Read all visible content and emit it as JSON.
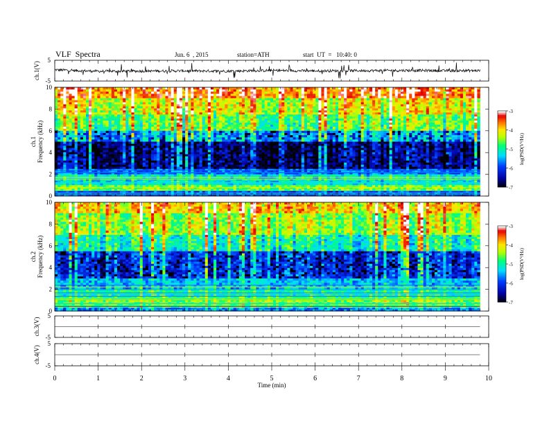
{
  "header": {
    "title": "VLF  Spectra",
    "date": "Jun. 6  , 2015",
    "station": "station=ATH",
    "start": "start  UT  =   10:40: 0"
  },
  "colorbar": {
    "label": "log(PSD(V²/Hz)",
    "ticks": [
      "-3",
      "-4",
      "-5",
      "-6",
      "-7"
    ]
  },
  "chart_data": [
    {
      "type": "line",
      "panel": "ch1-waveform",
      "ylabel": "ch.1(V)",
      "ylim": [
        -5,
        5
      ],
      "yticks": [
        "5",
        "-5"
      ],
      "x": [
        0,
        1,
        2,
        3,
        4,
        5,
        6,
        7,
        8,
        9,
        9.8
      ],
      "values": [
        0.4,
        -0.3,
        -0.2,
        -0.1,
        -0.2,
        0.1,
        -0.1,
        0.0,
        0.1,
        0.0,
        0.0
      ]
    },
    {
      "type": "heatmap",
      "panel": "ch1-spectrogram",
      "ylabel": "ch.1\nFrequency (kHz)",
      "ylim": [
        0,
        10
      ],
      "yticks": [
        "10",
        "8",
        "6",
        "4",
        "2",
        "0"
      ],
      "color_range": [
        -7,
        -3
      ],
      "bands": [
        {
          "f0": 9.0,
          "f1": 10.0,
          "level": -3.6
        },
        {
          "f0": 7.5,
          "f1": 9.0,
          "level": -4.2
        },
        {
          "f0": 6.0,
          "f1": 7.5,
          "level": -4.7
        },
        {
          "f0": 5.0,
          "f1": 6.0,
          "level": -5.5
        },
        {
          "f0": 2.5,
          "f1": 5.0,
          "level": -6.6
        },
        {
          "f0": 2.0,
          "f1": 2.5,
          "level": -5.8
        },
        {
          "f0": 1.0,
          "f1": 2.0,
          "level": -5.2
        },
        {
          "f0": 0.5,
          "f1": 1.0,
          "level": -4.6
        },
        {
          "f0": 0.0,
          "f1": 0.5,
          "level": -6.0
        }
      ]
    },
    {
      "type": "heatmap",
      "panel": "ch2-spectrogram",
      "ylabel": "ch.2\nFrequency (kHz)",
      "ylim": [
        0,
        10
      ],
      "yticks": [
        "10",
        "8",
        "6",
        "4",
        "2",
        "0"
      ],
      "color_range": [
        -7,
        -3
      ],
      "bands": [
        {
          "f0": 9.0,
          "f1": 10.0,
          "level": -3.9
        },
        {
          "f0": 7.0,
          "f1": 9.0,
          "level": -4.4
        },
        {
          "f0": 5.5,
          "f1": 7.0,
          "level": -5.0
        },
        {
          "f0": 3.0,
          "f1": 5.5,
          "level": -6.0
        },
        {
          "f0": 2.0,
          "f1": 3.0,
          "level": -5.4
        },
        {
          "f0": 1.0,
          "f1": 2.0,
          "level": -4.9
        },
        {
          "f0": 0.3,
          "f1": 1.0,
          "level": -4.5
        },
        {
          "f0": 0.0,
          "f1": 0.3,
          "level": -5.6
        }
      ]
    },
    {
      "type": "line",
      "panel": "ch3-waveform",
      "ylabel": "ch.3(V)",
      "ylim": [
        -5,
        5
      ],
      "yticks": [
        "5",
        "-5"
      ],
      "x": [
        0,
        9.8
      ],
      "values": [
        0,
        0
      ]
    },
    {
      "type": "line",
      "panel": "ch4-waveform",
      "ylabel": "ch.4(V)",
      "ylim": [
        -5,
        5
      ],
      "yticks": [
        "5",
        "-5"
      ],
      "x": [
        0,
        9.8
      ],
      "values": [
        0,
        0
      ]
    }
  ],
  "xaxis": {
    "label": "Time  (min)",
    "xlim": [
      0,
      10
    ],
    "ticks": [
      "0",
      "1",
      "2",
      "3",
      "4",
      "5",
      "6",
      "7",
      "8",
      "9",
      "10"
    ]
  }
}
